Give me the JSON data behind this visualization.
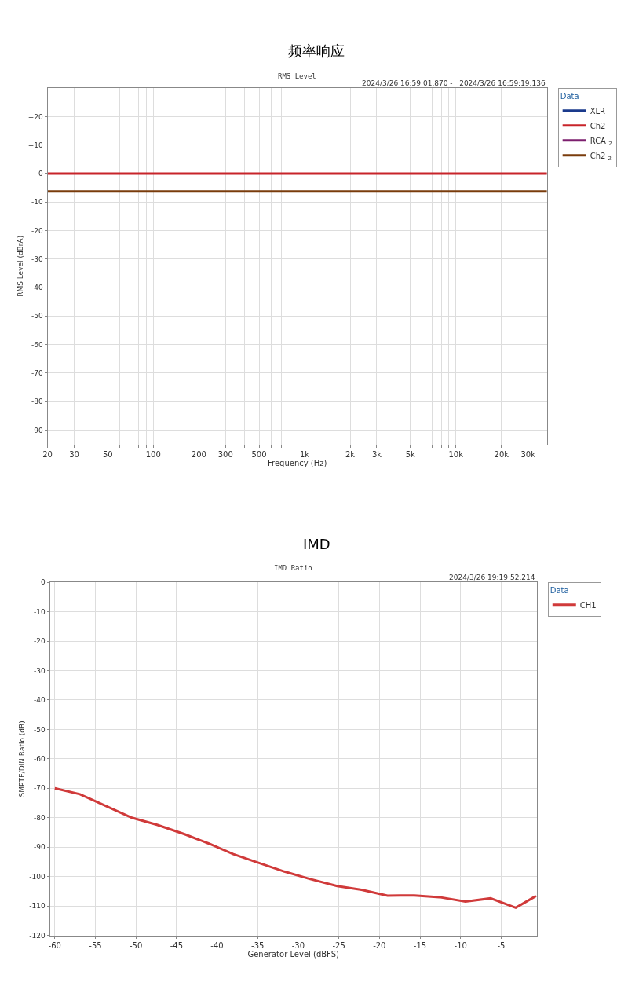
{
  "chart_data": [
    {
      "type": "line",
      "title": "频率响应",
      "subtitle": "RMS Level",
      "xlabel": "Frequency (Hz)",
      "ylabel": "RMS Level (dBrA)",
      "log": "x",
      "grid": true,
      "legend": "top right",
      "legend_title": "Data",
      "annotations": [
        "2024/3/26 16:59:01.870 -   2024/3/26 16:59:19.136"
      ],
      "x": [
        20,
        40000
      ],
      "xlim": [
        20,
        40000
      ],
      "xticks": [
        20,
        30,
        {
          "value": 40,
          "label": null
        },
        50,
        {
          "value": 60,
          "label": null
        },
        {
          "value": 70,
          "label": null
        },
        {
          "value": 80,
          "label": null
        },
        {
          "value": 90,
          "label": null
        },
        100,
        200,
        300,
        {
          "value": 400,
          "label": null
        },
        500,
        {
          "value": 600,
          "label": null
        },
        {
          "value": 700,
          "label": null
        },
        {
          "value": 800,
          "label": null
        },
        {
          "value": 900,
          "label": null
        },
        {
          "value": 1000,
          "label": "1k"
        },
        {
          "value": 2000,
          "label": "2k"
        },
        {
          "value": 3000,
          "label": "3k"
        },
        {
          "value": 4000,
          "label": null
        },
        {
          "value": 5000,
          "label": "5k"
        },
        {
          "value": 6000,
          "label": null
        },
        {
          "value": 7000,
          "label": null
        },
        {
          "value": 8000,
          "label": null
        },
        {
          "value": 9000,
          "label": null
        },
        {
          "value": 10000,
          "label": "10k"
        },
        {
          "value": 20000,
          "label": "20k"
        },
        {
          "value": 30000,
          "label": "30k"
        }
      ],
      "ylim": [
        -95,
        30
      ],
      "yticks": [
        {
          "value": 20,
          "label": "+20"
        },
        {
          "value": 10,
          "label": "+10"
        },
        0,
        -10,
        -20,
        -30,
        -40,
        -50,
        -60,
        -70,
        -80,
        -90
      ],
      "series": [
        {
          "name": "XLR",
          "color": "#1a3a8c",
          "values": [
            null,
            null
          ]
        },
        {
          "name": "Ch2",
          "color": "#c8242a",
          "values": [
            0,
            0
          ]
        },
        {
          "name": "RCA $_{2}$",
          "color": "#7c1f6e",
          "values": [
            null,
            null
          ]
        },
        {
          "name": "Ch2 $_{2}$",
          "color": "#7a3c0c",
          "values": [
            -6.3,
            -6.3
          ]
        }
      ]
    },
    {
      "type": "line",
      "title": "IMD",
      "subtitle": "IMD Ratio",
      "xlabel": "Generator Level (dBFS)",
      "ylabel": "SMPTE/DIN Ratio (dB)",
      "grid": true,
      "legend": "top right",
      "legend_title": "Data",
      "annotations": [
        "2024/3/26 19:19:52.214"
      ],
      "xlim": [
        -60.6,
        -0.6
      ],
      "xticks": [
        -60,
        -55,
        -50,
        -45,
        -40,
        -35,
        -30,
        -25,
        -20,
        -15,
        -10,
        -5
      ],
      "ylim": [
        -120,
        0
      ],
      "yticks": [
        0,
        -10,
        -20,
        -30,
        -40,
        -50,
        -60,
        -70,
        -80,
        -90,
        -100,
        -110,
        -120
      ],
      "x": [
        -60,
        -56.9,
        -53.8,
        -50.5,
        -47.4,
        -44,
        -41,
        -38,
        -34.9,
        -31.7,
        -28.6,
        -25.2,
        -22.2,
        -19,
        -15.7,
        -12.6,
        -9.4,
        -6.3,
        -3.2,
        -0.7
      ],
      "series": [
        {
          "name": "CH1",
          "color": "#d03a3a",
          "values": [
            -70,
            -72,
            -75.9,
            -80,
            -82.4,
            -85.6,
            -88.8,
            -92.4,
            -95.3,
            -98.3,
            -100.8,
            -103.2,
            -104.5,
            -106.5,
            -106.4,
            -107,
            -108.5,
            -107.4,
            -110.6,
            -106.6
          ]
        }
      ]
    }
  ]
}
